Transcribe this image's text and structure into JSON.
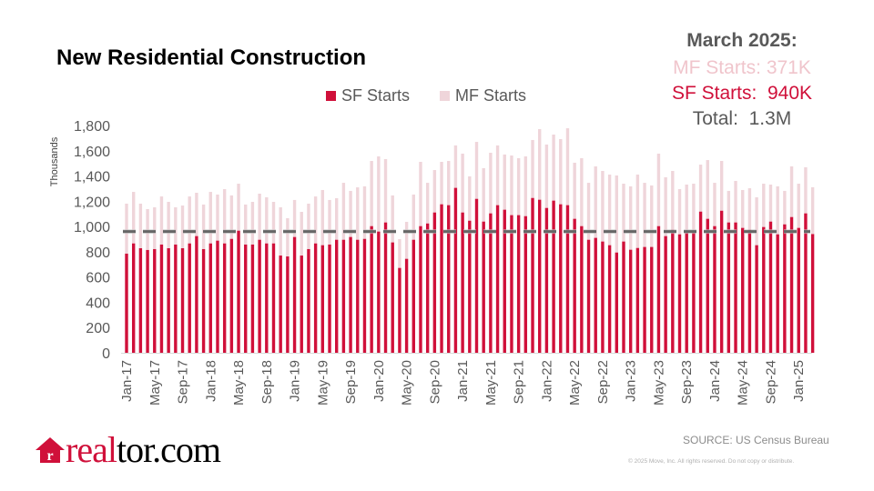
{
  "title": "New Residential Construction",
  "highlight": {
    "month": "March 2025:",
    "mf": "MF Starts: 371K",
    "sf": "SF Starts:  940K",
    "total": "Total:  1.3M"
  },
  "source": "SOURCE: US Census Bureau",
  "copyright": "© 2025 Move, Inc. All rights reserved. Do not copy or distribute.",
  "logo": {
    "text_red": "real",
    "text_black": "tor.com",
    "icon": "house-r-icon"
  },
  "colors": {
    "sf": "#d0103a",
    "mf": "#efd5da",
    "reference_line": "#666666",
    "text": "#595959"
  },
  "chart_data": {
    "type": "bar",
    "stacked": true,
    "title": "New Residential Construction",
    "ylabel": "Thousands",
    "xlabel": "",
    "ylim": [
      0,
      1800
    ],
    "yticks": [
      "0",
      "200",
      "400",
      "600",
      "800",
      "1,000",
      "1,200",
      "1,400",
      "1,600",
      "1,800"
    ],
    "grid": false,
    "legend_position": "top",
    "xtick_labels": [
      "Jan-17",
      "May-17",
      "Sep-17",
      "Jan-18",
      "May-18",
      "Sep-18",
      "Jan-19",
      "May-19",
      "Sep-19",
      "Jan-20",
      "May-20",
      "Sep-20",
      "Jan-21",
      "May-21",
      "Sep-21",
      "Jan-22",
      "May-22",
      "Sep-22",
      "Jan-23",
      "May-23",
      "Sep-23",
      "Jan-24",
      "May-24",
      "Sep-24",
      "Jan-25"
    ],
    "categories": [
      "Jan-17",
      "Feb-17",
      "Mar-17",
      "Apr-17",
      "May-17",
      "Jun-17",
      "Jul-17",
      "Aug-17",
      "Sep-17",
      "Oct-17",
      "Nov-17",
      "Dec-17",
      "Jan-18",
      "Feb-18",
      "Mar-18",
      "Apr-18",
      "May-18",
      "Jun-18",
      "Jul-18",
      "Aug-18",
      "Sep-18",
      "Oct-18",
      "Nov-18",
      "Dec-18",
      "Jan-19",
      "Feb-19",
      "Mar-19",
      "Apr-19",
      "May-19",
      "Jun-19",
      "Jul-19",
      "Aug-19",
      "Sep-19",
      "Oct-19",
      "Nov-19",
      "Dec-19",
      "Jan-20",
      "Feb-20",
      "Mar-20",
      "Apr-20",
      "May-20",
      "Jun-20",
      "Jul-20",
      "Aug-20",
      "Sep-20",
      "Oct-20",
      "Nov-20",
      "Dec-20",
      "Jan-21",
      "Feb-21",
      "Mar-21",
      "Apr-21",
      "May-21",
      "Jun-21",
      "Jul-21",
      "Aug-21",
      "Sep-21",
      "Oct-21",
      "Nov-21",
      "Dec-21",
      "Jan-22",
      "Feb-22",
      "Mar-22",
      "Apr-22",
      "May-22",
      "Jun-22",
      "Jul-22",
      "Aug-22",
      "Sep-22",
      "Oct-22",
      "Nov-22",
      "Dec-22",
      "Jan-23",
      "Feb-23",
      "Mar-23",
      "Apr-23",
      "May-23",
      "Jun-23",
      "Jul-23",
      "Aug-23",
      "Sep-23",
      "Oct-23",
      "Nov-23",
      "Dec-23",
      "Jan-24",
      "Feb-24",
      "Mar-24",
      "Apr-24",
      "May-24",
      "Jun-24",
      "Jul-24",
      "Aug-24",
      "Sep-24",
      "Oct-24",
      "Nov-24",
      "Dec-24",
      "Jan-25",
      "Feb-25",
      "Mar-25"
    ],
    "series": [
      {
        "name": "SF Starts",
        "values": [
          785,
          866,
          828,
          814,
          821,
          857,
          828,
          857,
          828,
          866,
          924,
          821,
          866,
          888,
          866,
          902,
          967,
          857,
          857,
          895,
          866,
          866,
          770,
          763,
          917,
          770,
          821,
          866,
          852,
          857,
          895,
          895,
          917,
          895,
          902,
          1003,
          960,
          1032,
          874,
          672,
          744,
          895,
          1003,
          1024,
          1111,
          1176,
          1169,
          1306,
          1111,
          1046,
          1219,
          1039,
          1104,
          1169,
          1133,
          1090,
          1090,
          1082,
          1226,
          1212,
          1147,
          1205,
          1176,
          1169,
          1061,
          1003,
          895,
          910,
          881,
          852,
          794,
          881,
          816,
          830,
          838,
          838,
          1003,
          924,
          974,
          938,
          960,
          953,
          1118,
          1061,
          1003,
          1125,
          1032,
          1032,
          989,
          974,
          852,
          996,
          1039,
          938,
          1017,
          1075,
          989,
          1104,
          940
        ]
      },
      {
        "name": "MF Starts",
        "values": [
          396,
          408,
          353,
          324,
          331,
          381,
          367,
          295,
          338,
          372,
          343,
          353,
          408,
          365,
          430,
          344,
          372,
          317,
          338,
          365,
          365,
          329,
          382,
          303,
          293,
          346,
          360,
          372,
          437,
          353,
          329,
          451,
          365,
          415,
          416,
          516,
          595,
          502,
          372,
          228,
          293,
          358,
          509,
          322,
          336,
          336,
          350,
          336,
          466,
          351,
          451,
          423,
          480,
          473,
          437,
          472,
          451,
          473,
          459,
          559,
          502,
          523,
          516,
          609,
          444,
          538,
          451,
          566,
          559,
          559,
          610,
          458,
          502,
          581,
          508,
          487,
          574,
          466,
          466,
          358,
          372,
          386,
          372,
          465,
          343,
          394,
          250,
          329,
          300,
          329,
          379,
          343,
          293,
          380,
          265,
          401,
          350,
          365,
          371
        ]
      }
    ],
    "reference_line": {
      "style": "dashed",
      "value": 960
    }
  }
}
